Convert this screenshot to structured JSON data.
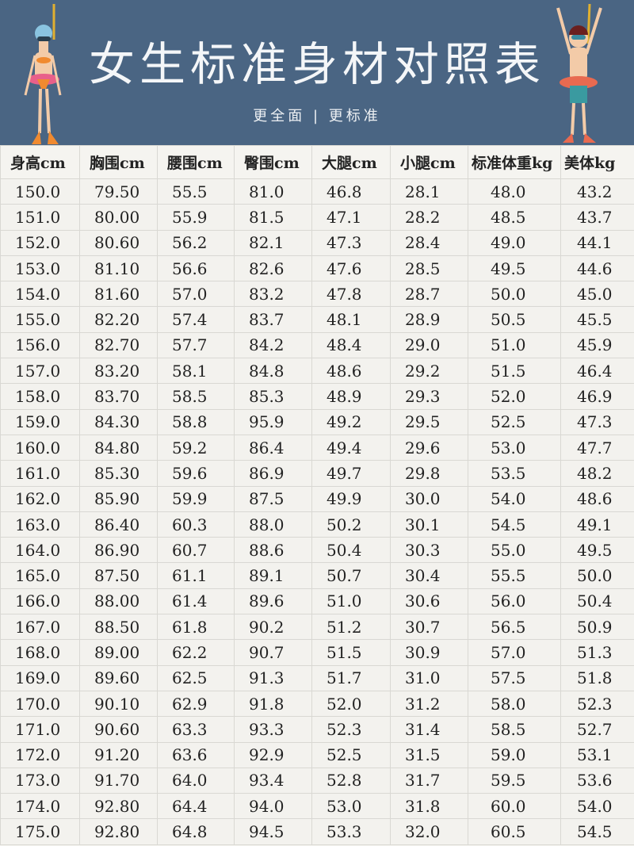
{
  "header": {
    "title": "女生标准身材对照表",
    "subtitle": "更全面 | 更标准",
    "background_color": "#4a6583",
    "left_icon": "girl-swimmer-illustration",
    "right_icon": "boy-swimmer-illustration"
  },
  "table": {
    "columns": [
      "身高cm",
      "胸围cm",
      "腰围cm",
      "臀围cm",
      "大腿cm",
      "小腿cm",
      "标准体重kg",
      "美体kg"
    ],
    "rows": [
      [
        "150.0",
        "79.50",
        "55.5",
        "81.0",
        "46.8",
        "28.1",
        "48.0",
        "43.2"
      ],
      [
        "151.0",
        "80.00",
        "55.9",
        "81.5",
        "47.1",
        "28.2",
        "48.5",
        "43.7"
      ],
      [
        "152.0",
        "80.60",
        "56.2",
        "82.1",
        "47.3",
        "28.4",
        "49.0",
        "44.1"
      ],
      [
        "153.0",
        "81.10",
        "56.6",
        "82.6",
        "47.6",
        "28.5",
        "49.5",
        "44.6"
      ],
      [
        "154.0",
        "81.60",
        "57.0",
        "83.2",
        "47.8",
        "28.7",
        "50.0",
        "45.0"
      ],
      [
        "155.0",
        "82.20",
        "57.4",
        "83.7",
        "48.1",
        "28.9",
        "50.5",
        "45.5"
      ],
      [
        "156.0",
        "82.70",
        "57.7",
        "84.2",
        "48.4",
        "29.0",
        "51.0",
        "45.9"
      ],
      [
        "157.0",
        "83.20",
        "58.1",
        "84.8",
        "48.6",
        "29.2",
        "51.5",
        "46.4"
      ],
      [
        "158.0",
        "83.70",
        "58.5",
        "85.3",
        "48.9",
        "29.3",
        "52.0",
        "46.9"
      ],
      [
        "159.0",
        "84.30",
        "58.8",
        "95.9",
        "49.2",
        "29.5",
        "52.5",
        "47.3"
      ],
      [
        "160.0",
        "84.80",
        "59.2",
        "86.4",
        "49.4",
        "29.6",
        "53.0",
        "47.7"
      ],
      [
        "161.0",
        "85.30",
        "59.6",
        "86.9",
        "49.7",
        "29.8",
        "53.5",
        "48.2"
      ],
      [
        "162.0",
        "85.90",
        "59.9",
        "87.5",
        "49.9",
        "30.0",
        "54.0",
        "48.6"
      ],
      [
        "163.0",
        "86.40",
        "60.3",
        "88.0",
        "50.2",
        "30.1",
        "54.5",
        "49.1"
      ],
      [
        "164.0",
        "86.90",
        "60.7",
        "88.6",
        "50.4",
        "30.3",
        "55.0",
        "49.5"
      ],
      [
        "165.0",
        "87.50",
        "61.1",
        "89.1",
        "50.7",
        "30.4",
        "55.5",
        "50.0"
      ],
      [
        "166.0",
        "88.00",
        "61.4",
        "89.6",
        "51.0",
        "30.6",
        "56.0",
        "50.4"
      ],
      [
        "167.0",
        "88.50",
        "61.8",
        "90.2",
        "51.2",
        "30.7",
        "56.5",
        "50.9"
      ],
      [
        "168.0",
        "89.00",
        "62.2",
        "90.7",
        "51.5",
        "30.9",
        "57.0",
        "51.3"
      ],
      [
        "169.0",
        "89.60",
        "62.5",
        "91.3",
        "51.7",
        "31.0",
        "57.5",
        "51.8"
      ],
      [
        "170.0",
        "90.10",
        "62.9",
        "91.8",
        "52.0",
        "31.2",
        "58.0",
        "52.3"
      ],
      [
        "171.0",
        "90.60",
        "63.3",
        "93.3",
        "52.3",
        "31.4",
        "58.5",
        "52.7"
      ],
      [
        "172.0",
        "91.20",
        "63.6",
        "92.9",
        "52.5",
        "31.5",
        "59.0",
        "53.1"
      ],
      [
        "173.0",
        "91.70",
        "64.0",
        "93.4",
        "52.8",
        "31.7",
        "59.5",
        "53.6"
      ],
      [
        "174.0",
        "92.80",
        "64.4",
        "94.0",
        "53.0",
        "31.8",
        "60.0",
        "54.0"
      ],
      [
        "175.0",
        "92.80",
        "64.8",
        "94.5",
        "53.3",
        "32.0",
        "60.5",
        "54.5"
      ]
    ]
  }
}
